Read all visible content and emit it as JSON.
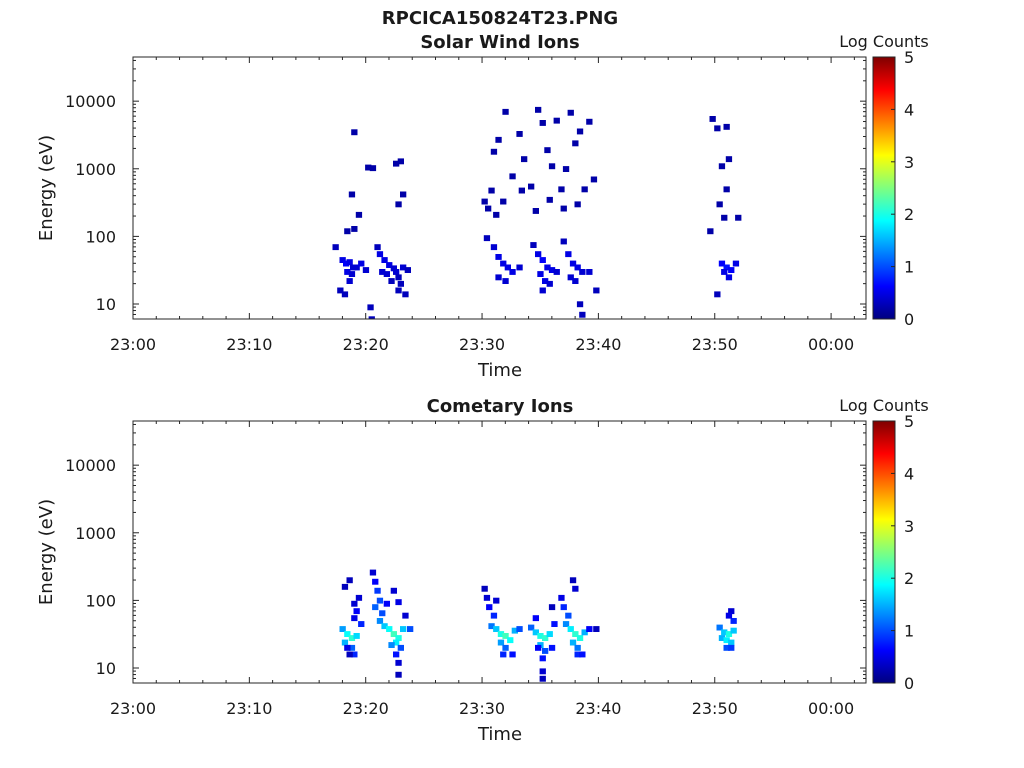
{
  "figure_title": "RPCICA150824T23.PNG",
  "colorscale": [
    "#00007f",
    "#0000ff",
    "#007fff",
    "#00ffff",
    "#7fff7f",
    "#ffff00",
    "#ff7f00",
    "#ff0000",
    "#7f0000"
  ],
  "chart_data": [
    {
      "type": "heatmap",
      "title": "Solar Wind Ions",
      "xlabel": "Time",
      "ylabel": "Energy (eV)",
      "yscale": "log",
      "ylim": [
        6,
        45000
      ],
      "xlim": [
        "23:00",
        "00:03"
      ],
      "xticks": [
        "23:00",
        "23:10",
        "23:20",
        "23:30",
        "23:40",
        "23:50",
        "00:00"
      ],
      "xtick_minutes": [
        0,
        10,
        20,
        30,
        40,
        50,
        60
      ],
      "yticks": [
        10,
        100,
        1000,
        10000
      ],
      "ytick_labels": [
        "10",
        "100",
        "1000",
        "10000"
      ],
      "colorbar": {
        "label": "Log Counts",
        "range": [
          0,
          5
        ],
        "ticks": [
          "0",
          "1",
          "2",
          "3",
          "4",
          "5"
        ]
      },
      "cell_minutes": 0.5,
      "cell_log_energy": 0.08,
      "points": [
        [
          17.4,
          70,
          0.3
        ],
        [
          18.0,
          45,
          0.5
        ],
        [
          18.3,
          40,
          0.6
        ],
        [
          18.6,
          42,
          0.5
        ],
        [
          18.9,
          35,
          0.4
        ],
        [
          18.4,
          30,
          0.5
        ],
        [
          18.8,
          28,
          0.4
        ],
        [
          18.6,
          22,
          0.4
        ],
        [
          17.8,
          16,
          0.3
        ],
        [
          18.2,
          14,
          0.3
        ],
        [
          19.2,
          35,
          0.4
        ],
        [
          19.6,
          40,
          0.5
        ],
        [
          20.0,
          32,
          0.4
        ],
        [
          18.4,
          120,
          0.2
        ],
        [
          19.0,
          130,
          0.2
        ],
        [
          19.4,
          210,
          0.2
        ],
        [
          18.8,
          420,
          0.2
        ],
        [
          20.2,
          1050,
          0.2
        ],
        [
          20.6,
          1030,
          0.2
        ],
        [
          19.0,
          3500,
          0.2
        ],
        [
          20.5,
          6,
          0.3
        ],
        [
          20.4,
          9,
          0.3
        ],
        [
          21.0,
          70,
          0.3
        ],
        [
          21.2,
          55,
          0.5
        ],
        [
          21.6,
          45,
          0.5
        ],
        [
          22.0,
          38,
          0.5
        ],
        [
          22.4,
          34,
          0.4
        ],
        [
          21.4,
          30,
          0.4
        ],
        [
          21.8,
          28,
          0.4
        ],
        [
          22.6,
          30,
          0.4
        ],
        [
          22.8,
          25,
          0.3
        ],
        [
          23.2,
          35,
          0.4
        ],
        [
          23.6,
          32,
          0.3
        ],
        [
          22.2,
          22,
          0.3
        ],
        [
          23.0,
          20,
          0.3
        ],
        [
          22.8,
          16,
          0.3
        ],
        [
          23.4,
          14,
          0.3
        ],
        [
          22.6,
          1200,
          0.2
        ],
        [
          23.0,
          1300,
          0.2
        ],
        [
          23.2,
          420,
          0.2
        ],
        [
          22.8,
          300,
          0.2
        ],
        [
          30.2,
          330,
          0.2
        ],
        [
          30.5,
          260,
          0.2
        ],
        [
          30.8,
          480,
          0.2
        ],
        [
          31.0,
          1800,
          0.2
        ],
        [
          31.4,
          2700,
          0.2
        ],
        [
          32.0,
          7000,
          0.2
        ],
        [
          32.6,
          780,
          0.2
        ],
        [
          33.2,
          3300,
          0.2
        ],
        [
          33.6,
          1400,
          0.2
        ],
        [
          34.2,
          550,
          0.2
        ],
        [
          34.8,
          7500,
          0.2
        ],
        [
          35.2,
          4800,
          0.2
        ],
        [
          35.6,
          1900,
          0.2
        ],
        [
          36.0,
          1100,
          0.2
        ],
        [
          36.4,
          5200,
          0.2
        ],
        [
          36.8,
          500,
          0.2
        ],
        [
          37.2,
          1000,
          0.2
        ],
        [
          37.6,
          6800,
          0.2
        ],
        [
          38.0,
          2400,
          0.2
        ],
        [
          38.4,
          3600,
          0.2
        ],
        [
          38.8,
          500,
          0.2
        ],
        [
          39.2,
          5000,
          0.2
        ],
        [
          39.6,
          700,
          0.2
        ],
        [
          31.8,
          330,
          0.2
        ],
        [
          33.4,
          480,
          0.2
        ],
        [
          34.6,
          240,
          0.2
        ],
        [
          35.8,
          350,
          0.2
        ],
        [
          37.0,
          260,
          0.2
        ],
        [
          38.2,
          300,
          0.2
        ],
        [
          31.2,
          210,
          0.2
        ],
        [
          30.4,
          95,
          0.3
        ],
        [
          31.0,
          70,
          0.4
        ],
        [
          31.4,
          50,
          0.5
        ],
        [
          31.8,
          40,
          0.5
        ],
        [
          32.2,
          35,
          0.5
        ],
        [
          32.6,
          30,
          0.5
        ],
        [
          31.4,
          25,
          0.4
        ],
        [
          32.0,
          22,
          0.4
        ],
        [
          33.2,
          35,
          0.4
        ],
        [
          34.4,
          75,
          0.3
        ],
        [
          34.8,
          55,
          0.5
        ],
        [
          35.2,
          45,
          0.6
        ],
        [
          35.6,
          35,
          0.5
        ],
        [
          36.0,
          32,
          0.5
        ],
        [
          35.0,
          28,
          0.5
        ],
        [
          35.4,
          22,
          0.5
        ],
        [
          35.8,
          20,
          0.4
        ],
        [
          35.2,
          16,
          0.4
        ],
        [
          36.4,
          30,
          0.4
        ],
        [
          37.0,
          85,
          0.3
        ],
        [
          37.4,
          55,
          0.5
        ],
        [
          37.8,
          40,
          0.5
        ],
        [
          38.2,
          35,
          0.5
        ],
        [
          38.6,
          30,
          0.4
        ],
        [
          37.6,
          25,
          0.4
        ],
        [
          38.0,
          22,
          0.4
        ],
        [
          38.4,
          10,
          0.3
        ],
        [
          38.6,
          7,
          0.3
        ],
        [
          39.2,
          30,
          0.4
        ],
        [
          39.8,
          16,
          0.3
        ],
        [
          49.8,
          5500,
          0.2
        ],
        [
          50.2,
          4000,
          0.2
        ],
        [
          51.0,
          4200,
          0.2
        ],
        [
          51.2,
          1400,
          0.2
        ],
        [
          50.6,
          1100,
          0.2
        ],
        [
          51.0,
          500,
          0.2
        ],
        [
          50.4,
          300,
          0.2
        ],
        [
          50.8,
          190,
          0.2
        ],
        [
          49.6,
          120,
          0.2
        ],
        [
          52.0,
          190,
          0.2
        ],
        [
          50.6,
          40,
          0.6
        ],
        [
          51.0,
          35,
          0.7
        ],
        [
          51.4,
          32,
          0.6
        ],
        [
          51.8,
          40,
          0.5
        ],
        [
          51.2,
          25,
          0.5
        ],
        [
          50.8,
          30,
          0.5
        ],
        [
          50.2,
          14,
          0.3
        ]
      ]
    },
    {
      "type": "heatmap",
      "title": "Cometary Ions",
      "xlabel": "Time",
      "ylabel": "Energy (eV)",
      "yscale": "log",
      "ylim": [
        6,
        45000
      ],
      "xlim": [
        "23:00",
        "00:03"
      ],
      "xticks": [
        "23:00",
        "23:10",
        "23:20",
        "23:30",
        "23:40",
        "23:50",
        "00:00"
      ],
      "xtick_minutes": [
        0,
        10,
        20,
        30,
        40,
        50,
        60
      ],
      "yticks": [
        10,
        100,
        1000,
        10000
      ],
      "ytick_labels": [
        "10",
        "100",
        "1000",
        "10000"
      ],
      "colorbar": {
        "label": "Log Counts",
        "range": [
          0,
          5
        ],
        "ticks": [
          "0",
          "1",
          "2",
          "3",
          "4",
          "5"
        ]
      },
      "cell_minutes": 0.5,
      "cell_log_energy": 0.08,
      "points": [
        [
          18.0,
          38,
          1.4
        ],
        [
          18.4,
          32,
          1.9
        ],
        [
          18.8,
          28,
          2.1
        ],
        [
          19.2,
          30,
          1.7
        ],
        [
          18.2,
          24,
          1.5
        ],
        [
          18.8,
          20,
          1.1
        ],
        [
          19.0,
          16,
          0.8
        ],
        [
          18.4,
          20,
          0.5
        ],
        [
          18.6,
          200,
          0.3
        ],
        [
          18.2,
          160,
          0.3
        ],
        [
          19.0,
          90,
          0.4
        ],
        [
          19.4,
          110,
          0.4
        ],
        [
          19.2,
          70,
          0.6
        ],
        [
          19.6,
          45,
          0.8
        ],
        [
          19.0,
          55,
          0.5
        ],
        [
          18.6,
          16,
          0.3
        ],
        [
          20.6,
          260,
          0.4
        ],
        [
          20.8,
          190,
          0.6
        ],
        [
          21.0,
          140,
          0.9
        ],
        [
          21.2,
          100,
          1.0
        ],
        [
          20.8,
          80,
          1.1
        ],
        [
          21.4,
          65,
          1.0
        ],
        [
          21.2,
          50,
          1.3
        ],
        [
          21.6,
          42,
          1.6
        ],
        [
          22.0,
          38,
          1.9
        ],
        [
          22.4,
          32,
          2.2
        ],
        [
          22.8,
          28,
          2.0
        ],
        [
          23.2,
          38,
          1.6
        ],
        [
          22.6,
          24,
          1.8
        ],
        [
          22.2,
          22,
          1.3
        ],
        [
          23.0,
          20,
          1.0
        ],
        [
          22.6,
          16,
          0.7
        ],
        [
          22.8,
          12,
          0.4
        ],
        [
          22.8,
          8,
          0.3
        ],
        [
          22.4,
          140,
          0.4
        ],
        [
          22.8,
          95,
          0.5
        ],
        [
          23.4,
          60,
          0.4
        ],
        [
          23.8,
          38,
          1.0
        ],
        [
          21.8,
          90,
          0.6
        ],
        [
          30.2,
          150,
          0.3
        ],
        [
          30.4,
          110,
          0.4
        ],
        [
          30.6,
          80,
          0.6
        ],
        [
          31.0,
          60,
          0.8
        ],
        [
          30.8,
          42,
          1.2
        ],
        [
          31.2,
          38,
          1.6
        ],
        [
          31.6,
          32,
          2.0
        ],
        [
          32.0,
          30,
          2.2
        ],
        [
          32.4,
          26,
          1.9
        ],
        [
          32.8,
          36,
          1.5
        ],
        [
          31.6,
          24,
          1.4
        ],
        [
          32.0,
          20,
          1.1
        ],
        [
          31.8,
          16,
          0.8
        ],
        [
          32.6,
          16,
          0.7
        ],
        [
          31.2,
          100,
          0.4
        ],
        [
          33.2,
          38,
          1.0
        ],
        [
          34.2,
          40,
          1.1
        ],
        [
          34.6,
          34,
          1.6
        ],
        [
          35.0,
          30,
          2.0
        ],
        [
          35.4,
          28,
          2.1
        ],
        [
          35.8,
          32,
          1.7
        ],
        [
          35.0,
          22,
          1.5
        ],
        [
          35.4,
          18,
          1.0
        ],
        [
          35.2,
          14,
          0.7
        ],
        [
          35.2,
          9,
          0.4
        ],
        [
          35.2,
          7,
          0.3
        ],
        [
          34.6,
          55,
          0.6
        ],
        [
          36.2,
          45,
          0.7
        ],
        [
          36.0,
          80,
          0.3
        ],
        [
          34.8,
          20,
          0.6
        ],
        [
          36.0,
          20,
          0.7
        ],
        [
          36.8,
          110,
          0.5
        ],
        [
          37.0,
          80,
          0.8
        ],
        [
          37.4,
          60,
          1.0
        ],
        [
          37.2,
          45,
          1.3
        ],
        [
          37.6,
          38,
          1.8
        ],
        [
          38.0,
          32,
          2.1
        ],
        [
          38.4,
          28,
          2.0
        ],
        [
          38.8,
          34,
          1.5
        ],
        [
          37.8,
          24,
          1.5
        ],
        [
          38.2,
          20,
          1.2
        ],
        [
          38.2,
          16,
          0.8
        ],
        [
          38.6,
          16,
          0.7
        ],
        [
          37.8,
          200,
          0.3
        ],
        [
          38.0,
          150,
          0.4
        ],
        [
          39.2,
          38,
          0.6
        ],
        [
          39.8,
          38,
          0.3
        ],
        [
          50.4,
          40,
          1.2
        ],
        [
          50.8,
          34,
          1.6
        ],
        [
          51.2,
          32,
          2.0
        ],
        [
          51.6,
          36,
          1.6
        ],
        [
          50.6,
          28,
          1.5
        ],
        [
          51.0,
          26,
          1.8
        ],
        [
          51.4,
          24,
          1.6
        ],
        [
          51.0,
          20,
          1.0
        ],
        [
          51.4,
          20,
          0.9
        ],
        [
          51.6,
          50,
          0.8
        ],
        [
          51.4,
          70,
          0.4
        ],
        [
          51.2,
          60,
          0.5
        ]
      ]
    }
  ]
}
